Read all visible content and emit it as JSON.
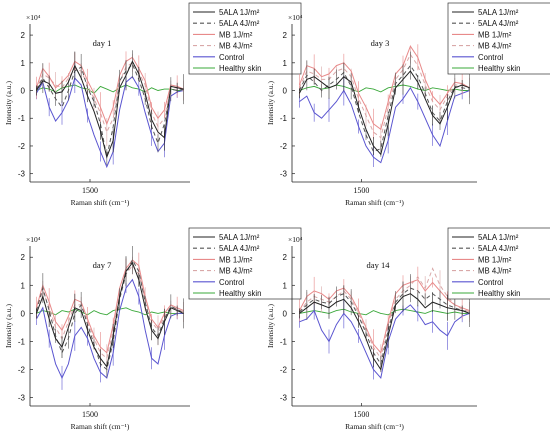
{
  "chart_data": [
    {
      "type": "line",
      "title": "day 1",
      "exponent_label": "×10⁴",
      "xlabel": "Raman shift (cm⁻¹)",
      "ylabel": "Intensity (a.u.)",
      "ylim": [
        -3.3,
        2.4
      ],
      "yticks": [
        "2",
        "1",
        "0",
        "-1",
        "-2",
        "-3"
      ],
      "xlim": [
        1380,
        1700
      ],
      "xticks": [
        "1500"
      ],
      "grid": false,
      "legend_position": "right",
      "series": [
        {
          "name": "5ALA 1J/m²",
          "color": "#222222",
          "dash": "",
          "values": [
            0.0,
            0.35,
            0.25,
            -0.1,
            -0.05,
            0.3,
            0.9,
            0.45,
            -0.2,
            -0.75,
            -1.45,
            -2.4,
            -1.8,
            0.1,
            0.55,
            1.05,
            0.6,
            -0.1,
            -1.05,
            -1.5,
            -1.7,
            0.15,
            0.1,
            0.05
          ]
        },
        {
          "name": "5ALA 4J/m²",
          "color": "#555555",
          "dash": "4,3",
          "values": [
            0.05,
            0.45,
            0.1,
            -0.3,
            -0.6,
            0.0,
            0.7,
            0.85,
            0.1,
            -0.4,
            -1.2,
            -2.4,
            -1.3,
            0.35,
            0.7,
            0.95,
            0.4,
            -0.3,
            -1.3,
            -1.9,
            -1.2,
            0.05,
            0.0,
            0.05
          ]
        },
        {
          "name": "MB 1J/m²",
          "color": "#e88a8a",
          "dash": "",
          "values": [
            0.1,
            0.8,
            0.5,
            0.1,
            0.3,
            0.55,
            1.05,
            0.9,
            0.35,
            -0.1,
            -0.6,
            -1.2,
            -0.6,
            0.55,
            1.05,
            1.2,
            0.8,
            0.35,
            -0.6,
            -1.0,
            -0.7,
            0.2,
            0.15,
            0.05
          ]
        },
        {
          "name": "MB 4J/m²",
          "color": "#d9a8a8",
          "dash": "4,3",
          "values": [
            0.0,
            0.6,
            0.45,
            0.2,
            0.1,
            0.45,
            0.8,
            0.7,
            0.2,
            -0.3,
            -0.8,
            -1.5,
            -1.0,
            0.3,
            0.85,
            1.0,
            0.65,
            0.2,
            -0.8,
            -1.3,
            -1.0,
            0.1,
            0.1,
            0.0
          ]
        },
        {
          "name": "Control",
          "color": "#5a55d0",
          "dash": "",
          "values": [
            -0.1,
            0.3,
            -0.6,
            -1.1,
            -0.8,
            -0.35,
            0.45,
            0.2,
            -0.9,
            -1.6,
            -2.2,
            -2.75,
            -2.2,
            -0.7,
            0.3,
            0.5,
            0.1,
            -0.8,
            -1.6,
            -2.2,
            -1.9,
            -0.2,
            -0.05,
            0.0
          ]
        },
        {
          "name": "Healthy skin",
          "color": "#3aa83a",
          "dash": "",
          "values": [
            0.0,
            0.1,
            0.05,
            -0.05,
            0.1,
            0.15,
            0.2,
            0.1,
            0.05,
            -0.1,
            0.15,
            0.05,
            -0.05,
            0.1,
            0.2,
            0.1,
            0.05,
            -0.05,
            0.1,
            0.0,
            0.05,
            0.05,
            0.0,
            0.0
          ]
        }
      ]
    },
    {
      "type": "line",
      "title": "day 3",
      "exponent_label": "×10⁴",
      "xlabel": "Raman shift (cm⁻¹)",
      "ylabel": "Intensity (a.u.)",
      "ylim": [
        -3.3,
        2.4
      ],
      "yticks": [
        "2",
        "1",
        "0",
        "-1",
        "-2",
        "-3"
      ],
      "xlim": [
        1380,
        1700
      ],
      "xticks": [
        "1500"
      ],
      "grid": false,
      "legend_position": "right",
      "series": [
        {
          "name": "5ALA 1J/m²",
          "color": "#222222",
          "dash": "",
          "values": [
            -0.1,
            0.4,
            0.5,
            0.3,
            0.1,
            0.2,
            0.5,
            0.3,
            -0.6,
            -1.4,
            -2.0,
            -2.3,
            -1.2,
            0.1,
            0.4,
            0.7,
            0.3,
            -0.3,
            -0.9,
            -1.2,
            -0.6,
            0.1,
            0.2,
            0.1
          ]
        },
        {
          "name": "5ALA 4J/m²",
          "color": "#555555",
          "dash": "4,3",
          "values": [
            0.0,
            0.55,
            0.3,
            0.0,
            0.2,
            0.4,
            0.65,
            0.15,
            -0.8,
            -1.6,
            -2.2,
            -2.1,
            -0.9,
            0.25,
            0.55,
            0.9,
            0.5,
            -0.1,
            -0.8,
            -1.1,
            -0.4,
            0.15,
            0.1,
            0.05
          ]
        },
        {
          "name": "MB 1J/m²",
          "color": "#e88a8a",
          "dash": "",
          "values": [
            0.2,
            0.9,
            0.8,
            0.5,
            0.6,
            0.9,
            1.0,
            0.7,
            -0.1,
            -0.6,
            -1.2,
            -1.4,
            -0.4,
            0.6,
            0.9,
            1.6,
            1.2,
            0.4,
            -0.2,
            -0.5,
            -0.1,
            0.3,
            0.25,
            0.1
          ]
        },
        {
          "name": "MB 4J/m²",
          "color": "#d9a8a8",
          "dash": "4,3",
          "values": [
            0.1,
            0.7,
            0.6,
            0.4,
            0.4,
            0.7,
            0.8,
            0.5,
            -0.3,
            -0.9,
            -1.5,
            -1.7,
            -0.6,
            0.4,
            0.75,
            1.3,
            0.9,
            0.2,
            -0.4,
            -0.7,
            -0.2,
            0.2,
            0.2,
            0.1
          ]
        },
        {
          "name": "Control",
          "color": "#5a55d0",
          "dash": "",
          "values": [
            -0.4,
            -0.2,
            -0.8,
            -1.0,
            -0.7,
            -0.4,
            0.0,
            -0.5,
            -1.3,
            -2.0,
            -2.4,
            -2.6,
            -1.8,
            -0.6,
            -0.3,
            0.1,
            -0.4,
            -1.0,
            -1.6,
            -2.0,
            -1.1,
            -0.2,
            -0.1,
            0.0
          ]
        },
        {
          "name": "Healthy skin",
          "color": "#3aa83a",
          "dash": "",
          "values": [
            0.0,
            0.1,
            0.15,
            0.05,
            0.1,
            0.2,
            0.15,
            0.05,
            -0.05,
            0.1,
            0.05,
            -0.05,
            0.1,
            0.15,
            0.2,
            0.15,
            0.05,
            0.0,
            0.1,
            0.05,
            0.0,
            0.05,
            0.0,
            0.0
          ]
        }
      ]
    },
    {
      "type": "line",
      "title": "day 7",
      "exponent_label": "×10⁴",
      "xlabel": "Raman shift (cm⁻¹)",
      "ylabel": "Intensity (a.u.)",
      "ylim": [
        -3.3,
        2.4
      ],
      "yticks": [
        "2",
        "1",
        "0",
        "-1",
        "-2",
        "-3"
      ],
      "xlim": [
        1380,
        1700
      ],
      "xticks": [
        "1500"
      ],
      "grid": false,
      "legend_position": "right",
      "series": [
        {
          "name": "5ALA 1J/m²",
          "color": "#222222",
          "dash": "",
          "values": [
            0.0,
            0.6,
            -0.2,
            -0.9,
            -1.2,
            -0.5,
            0.2,
            0.1,
            -0.6,
            -1.2,
            -1.6,
            -1.9,
            -0.8,
            0.6,
            1.5,
            1.8,
            1.2,
            0.2,
            -0.6,
            -0.9,
            -0.3,
            0.2,
            0.1,
            0.0
          ]
        },
        {
          "name": "5ALA 4J/m²",
          "color": "#555555",
          "dash": "4,3",
          "values": [
            0.1,
            0.9,
            0.1,
            -0.8,
            -1.4,
            -0.9,
            0.0,
            0.3,
            -0.4,
            -1.1,
            -1.8,
            -2.0,
            -1.0,
            0.5,
            1.4,
            1.9,
            1.5,
            0.4,
            -0.5,
            -0.8,
            -0.2,
            0.25,
            0.15,
            0.0
          ]
        },
        {
          "name": "MB 1J/m²",
          "color": "#e88a8a",
          "dash": "",
          "values": [
            0.2,
            1.0,
            0.4,
            -0.3,
            -0.6,
            -0.1,
            0.5,
            0.4,
            -0.2,
            -0.8,
            -1.2,
            -1.4,
            -0.4,
            0.9,
            1.6,
            1.9,
            1.7,
            0.6,
            -0.2,
            -0.5,
            0.0,
            0.3,
            0.2,
            0.1
          ]
        },
        {
          "name": "MB 4J/m²",
          "color": "#d9a8a8",
          "dash": "4,3",
          "values": [
            0.1,
            0.8,
            0.2,
            -0.5,
            -0.9,
            -0.3,
            0.3,
            0.3,
            -0.3,
            -0.9,
            -1.4,
            -1.6,
            -0.6,
            0.7,
            1.4,
            1.7,
            1.4,
            0.5,
            -0.3,
            -0.6,
            -0.1,
            0.2,
            0.15,
            0.05
          ]
        },
        {
          "name": "Control",
          "color": "#5a55d0",
          "dash": "",
          "values": [
            -0.2,
            0.2,
            -0.9,
            -1.8,
            -2.3,
            -1.8,
            -0.8,
            -0.5,
            -0.9,
            -1.6,
            -2.1,
            -2.3,
            -1.4,
            0.1,
            0.9,
            1.2,
            0.6,
            -0.6,
            -1.6,
            -1.8,
            -0.8,
            -0.1,
            0.0,
            0.0
          ]
        },
        {
          "name": "Healthy skin",
          "color": "#3aa83a",
          "dash": "",
          "values": [
            0.0,
            0.1,
            0.05,
            -0.05,
            0.1,
            0.05,
            0.15,
            0.05,
            -0.05,
            0.1,
            0.0,
            -0.05,
            0.1,
            0.15,
            0.2,
            0.1,
            0.05,
            -0.05,
            0.05,
            0.0,
            0.05,
            0.0,
            0.0,
            0.0
          ]
        }
      ]
    },
    {
      "type": "line",
      "title": "day 14",
      "exponent_label": "×10⁴",
      "xlabel": "Raman shift (cm⁻¹)",
      "ylabel": "Intensity (a.u.)",
      "ylim": [
        -3.3,
        2.4
      ],
      "yticks": [
        "2",
        "1",
        "0",
        "-1",
        "-2",
        "-3"
      ],
      "xlim": [
        1380,
        1700
      ],
      "xticks": [
        "1500"
      ],
      "grid": false,
      "legend_position": "right",
      "series": [
        {
          "name": "5ALA 1J/m²",
          "color": "#222222",
          "dash": "",
          "values": [
            0.0,
            0.2,
            0.4,
            0.3,
            0.2,
            0.4,
            0.5,
            0.2,
            -0.3,
            -0.9,
            -1.6,
            -2.0,
            -0.8,
            0.3,
            0.6,
            0.7,
            0.5,
            0.2,
            0.4,
            0.3,
            0.2,
            0.15,
            0.1,
            0.0
          ]
        },
        {
          "name": "5ALA 4J/m²",
          "color": "#555555",
          "dash": "4,3",
          "values": [
            0.05,
            0.3,
            0.5,
            0.4,
            0.35,
            0.6,
            0.7,
            0.4,
            -0.1,
            -0.7,
            -1.4,
            -1.8,
            -0.6,
            0.4,
            0.7,
            0.9,
            0.8,
            0.5,
            0.7,
            0.5,
            0.3,
            0.2,
            0.1,
            0.05
          ]
        },
        {
          "name": "MB 1J/m²",
          "color": "#e88a8a",
          "dash": "",
          "values": [
            0.1,
            0.6,
            0.8,
            0.7,
            0.5,
            0.8,
            0.9,
            0.6,
            0.1,
            -0.5,
            -1.1,
            -1.4,
            -0.3,
            0.7,
            1.0,
            1.1,
            1.2,
            0.8,
            1.1,
            0.8,
            0.5,
            0.3,
            0.2,
            0.1
          ]
        },
        {
          "name": "MB 4J/m²",
          "color": "#d9a8a8",
          "dash": "4,3",
          "values": [
            0.05,
            0.4,
            0.6,
            0.5,
            0.4,
            0.6,
            0.8,
            0.5,
            0.0,
            -0.6,
            -1.2,
            -1.6,
            -0.4,
            0.5,
            0.8,
            1.0,
            1.3,
            0.9,
            1.6,
            1.0,
            0.6,
            0.3,
            0.15,
            0.05
          ]
        },
        {
          "name": "Control",
          "color": "#5a55d0",
          "dash": "",
          "values": [
            -0.3,
            -0.2,
            0.1,
            -0.6,
            -1.0,
            -0.4,
            0.0,
            -0.3,
            -0.8,
            -1.4,
            -2.0,
            -2.3,
            -1.0,
            -0.2,
            0.1,
            0.3,
            0.0,
            -0.4,
            -0.3,
            -0.6,
            -0.8,
            -0.3,
            -0.1,
            0.0
          ]
        },
        {
          "name": "Healthy skin",
          "color": "#3aa83a",
          "dash": "",
          "values": [
            0.0,
            0.05,
            0.1,
            0.05,
            0.0,
            0.1,
            0.15,
            0.05,
            0.0,
            -0.05,
            0.1,
            0.0,
            -0.05,
            0.1,
            0.15,
            0.1,
            0.05,
            0.0,
            0.1,
            0.05,
            0.0,
            0.05,
            0.0,
            0.0
          ]
        }
      ]
    }
  ]
}
